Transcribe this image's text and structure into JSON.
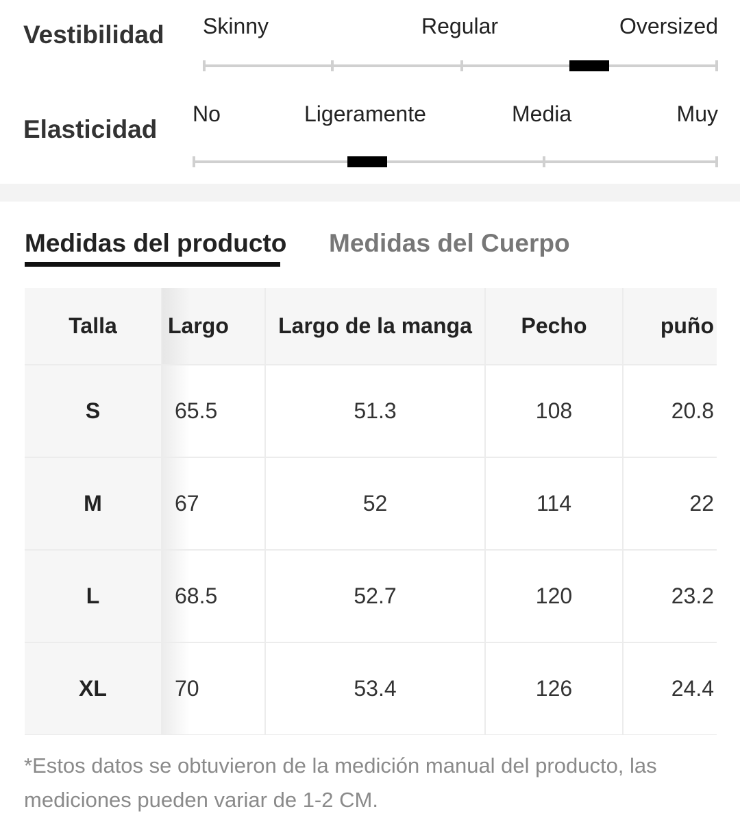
{
  "fit": {
    "title": "Vestibilidad",
    "labels": [
      "Skinny",
      "Regular",
      "Oversized"
    ],
    "selected_fraction": 0.75
  },
  "elasticity": {
    "title": "Elasticidad",
    "labels": [
      "No",
      "Ligeramente",
      "Media",
      "Muy"
    ],
    "selected_fraction": 0.333
  },
  "tabs": [
    {
      "label": "Medidas del producto",
      "active": true
    },
    {
      "label": "Medidas del Cuerpo",
      "active": false
    }
  ],
  "table": {
    "headers": [
      "Talla",
      "Largo",
      "Largo de la manga",
      "Pecho",
      "puño"
    ],
    "rows": [
      [
        "S",
        "65.5",
        "51.3",
        "108",
        "20.8"
      ],
      [
        "M",
        "67",
        "52",
        "114",
        "22"
      ],
      [
        "L",
        "68.5",
        "52.7",
        "120",
        "23.2"
      ],
      [
        "XL",
        "70",
        "53.4",
        "126",
        "24.4"
      ]
    ]
  },
  "footnote": "*Estos datos se obtuvieron de la medición manual del producto, las mediciones pueden variar de 1-2 CM.",
  "colors": {
    "indicator": "#000000",
    "track": "#d0d0d0",
    "active_tab": "#222222",
    "inactive_tab": "#777777",
    "footnote": "#8a8a8a"
  }
}
